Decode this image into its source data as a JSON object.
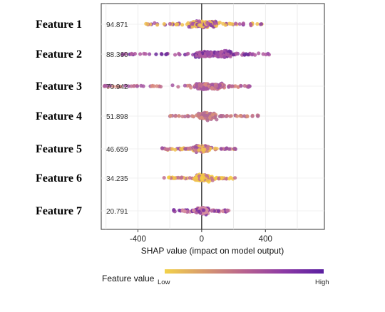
{
  "chart_data": {
    "type": "scatter",
    "subtype": "shap-beeswarm",
    "title": "",
    "xlabel": "SHAP value (impact on model output)",
    "ylabel": "",
    "xlim": [
      -630,
      770
    ],
    "xticks": [
      -400,
      0,
      400
    ],
    "grid": true,
    "features": [
      {
        "name": "Feature 1",
        "mean_abs_shap": "94.871",
        "min": -360,
        "max": 420,
        "core": [
          -60,
          90
        ],
        "colors": [
          "#f0c050",
          "#b05aa0",
          "#8a3fa6"
        ]
      },
      {
        "name": "Feature 2",
        "mean_abs_shap": "88.360",
        "min": -520,
        "max": 430,
        "core": [
          -20,
          190
        ],
        "colors": [
          "#b05aa0",
          "#9a4aa8",
          "#6a2a9a"
        ]
      },
      {
        "name": "Feature 3",
        "mean_abs_shap": "70.942",
        "min": -610,
        "max": 310,
        "core": [
          -40,
          130
        ],
        "colors": [
          "#a456a2",
          "#c07090",
          "#d88a80"
        ]
      },
      {
        "name": "Feature 4",
        "mean_abs_shap": "51.898",
        "min": -200,
        "max": 370,
        "core": [
          -10,
          80
        ],
        "colors": [
          "#c87a8a",
          "#b06a95",
          "#d8907a"
        ]
      },
      {
        "name": "Feature 5",
        "mean_abs_shap": "46.659",
        "min": -250,
        "max": 220,
        "core": [
          -40,
          40
        ],
        "colors": [
          "#f0c050",
          "#c87890",
          "#9a50a0"
        ]
      },
      {
        "name": "Feature 6",
        "mean_abs_shap": "34.235",
        "min": -250,
        "max": 210,
        "core": [
          -30,
          40
        ],
        "colors": [
          "#f0c050",
          "#f5cc40",
          "#c07090"
        ]
      },
      {
        "name": "Feature 7",
        "mean_abs_shap": "20.791",
        "min": -180,
        "max": 170,
        "core": [
          -10,
          30
        ],
        "colors": [
          "#d890a0",
          "#b868a0",
          "#7a30a0"
        ]
      }
    ],
    "colorbar": {
      "title": "Feature value",
      "low_label": "Low",
      "high_label": "High",
      "stops": [
        "#f2d24a",
        "#d89a6e",
        "#b8628f",
        "#8c3aa5",
        "#5a1fa0"
      ]
    }
  }
}
